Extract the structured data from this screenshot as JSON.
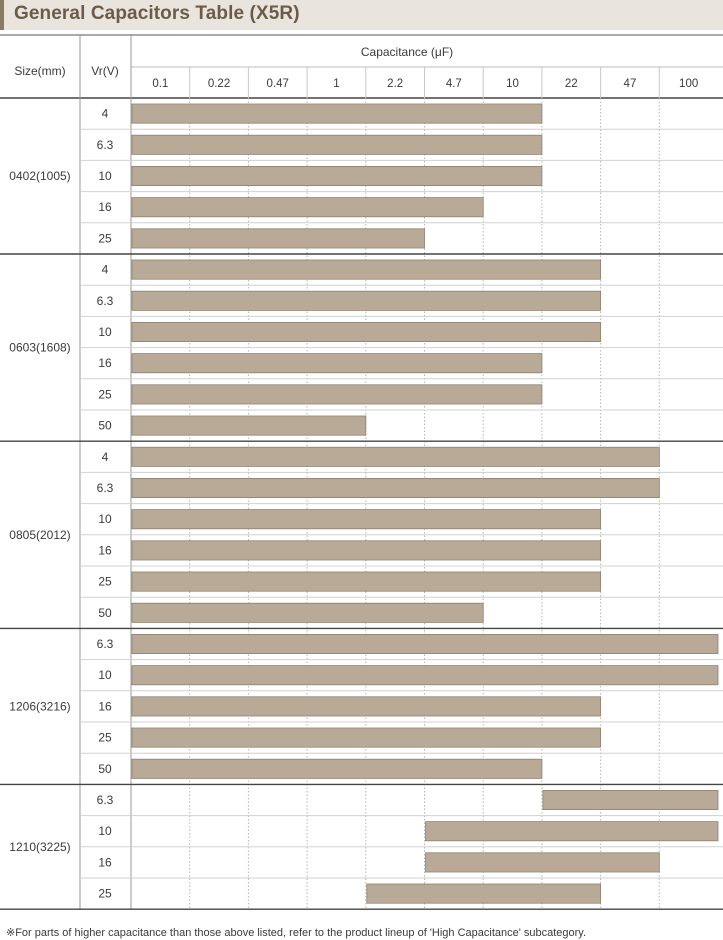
{
  "title": "General Capacitors Table (X5R)",
  "footnote": "※For parts of higher capacitance than those above listed, refer to the product lineup of 'High Capacitance' subcategory.",
  "colors": {
    "bar": "#b8aa96",
    "bar_edge": "#8e8170",
    "title_bg": "#e9e4de",
    "title_text": "#6b5c48"
  },
  "chart_data": {
    "type": "bar",
    "orientation": "horizontal-range",
    "xlabel": "Capacitance (μF)",
    "size_header": "Size(mm)",
    "vr_header": "Vr(V)",
    "x_categories": [
      "0.1",
      "0.22",
      "0.47",
      "1",
      "2.2",
      "4.7",
      "10",
      "22",
      "47",
      "100"
    ],
    "groups": [
      {
        "size": "0402(1005)",
        "rows": [
          {
            "vr": "4",
            "min": "0.1",
            "max": "10"
          },
          {
            "vr": "6.3",
            "min": "0.1",
            "max": "10"
          },
          {
            "vr": "10",
            "min": "0.1",
            "max": "10"
          },
          {
            "vr": "16",
            "min": "0.1",
            "max": "4.7"
          },
          {
            "vr": "25",
            "min": "0.1",
            "max": "2.2"
          }
        ]
      },
      {
        "size": "0603(1608)",
        "rows": [
          {
            "vr": "4",
            "min": "0.1",
            "max": "22"
          },
          {
            "vr": "6.3",
            "min": "0.1",
            "max": "22"
          },
          {
            "vr": "10",
            "min": "0.1",
            "max": "22"
          },
          {
            "vr": "16",
            "min": "0.1",
            "max": "10"
          },
          {
            "vr": "25",
            "min": "0.1",
            "max": "10"
          },
          {
            "vr": "50",
            "min": "0.1",
            "max": "1"
          }
        ]
      },
      {
        "size": "0805(2012)",
        "rows": [
          {
            "vr": "4",
            "min": "0.1",
            "max": "47"
          },
          {
            "vr": "6.3",
            "min": "0.1",
            "max": "47"
          },
          {
            "vr": "10",
            "min": "0.1",
            "max": "22"
          },
          {
            "vr": "16",
            "min": "0.1",
            "max": "22"
          },
          {
            "vr": "25",
            "min": "0.1",
            "max": "22"
          },
          {
            "vr": "50",
            "min": "0.1",
            "max": "4.7"
          }
        ]
      },
      {
        "size": "1206(3216)",
        "rows": [
          {
            "vr": "6.3",
            "min": "0.1",
            "max": "100"
          },
          {
            "vr": "10",
            "min": "0.1",
            "max": "100"
          },
          {
            "vr": "16",
            "min": "0.1",
            "max": "22"
          },
          {
            "vr": "25",
            "min": "0.1",
            "max": "22"
          },
          {
            "vr": "50",
            "min": "0.1",
            "max": "10"
          }
        ]
      },
      {
        "size": "1210(3225)",
        "rows": [
          {
            "vr": "6.3",
            "min": "22",
            "max": "100"
          },
          {
            "vr": "10",
            "min": "4.7",
            "max": "100"
          },
          {
            "vr": "16",
            "min": "4.7",
            "max": "47"
          },
          {
            "vr": "25",
            "min": "2.2",
            "max": "22"
          }
        ]
      }
    ]
  }
}
